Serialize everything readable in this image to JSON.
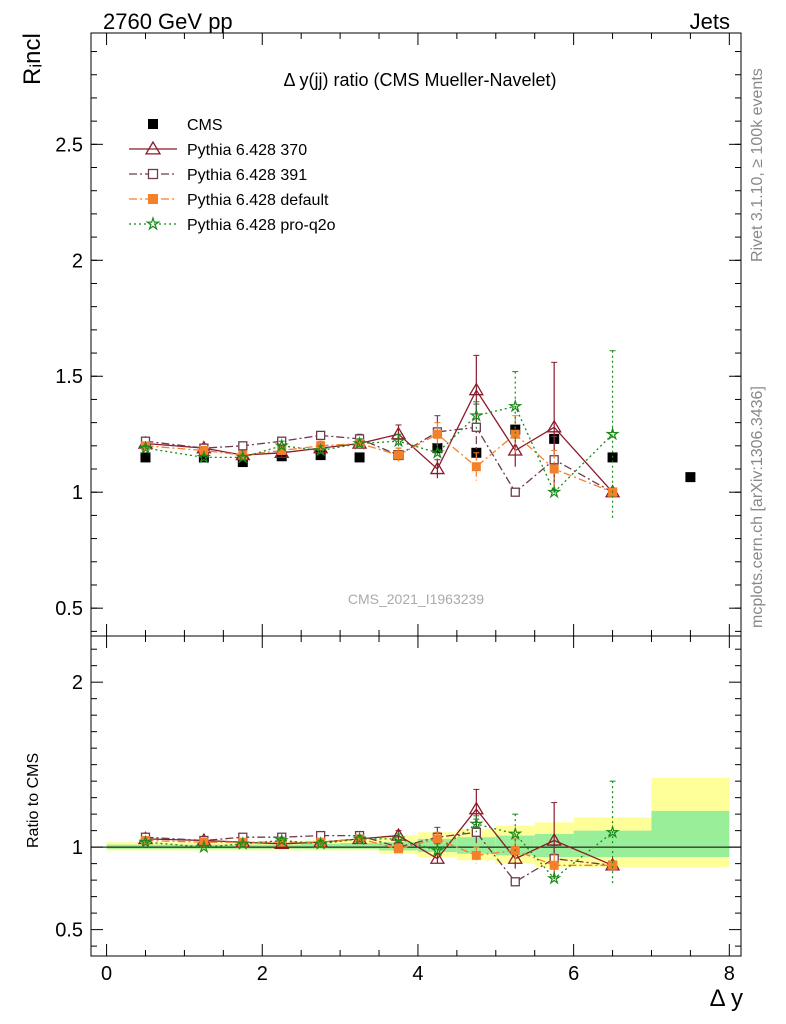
{
  "header": {
    "left": "2760 GeV pp",
    "right": "Jets"
  },
  "side_labels": {
    "rivet": "Rivet 3.1.10, ≥ 100k events",
    "mcplots": "mcplots.cern.ch [arXiv:1306.3436]"
  },
  "chart_data": [
    {
      "type": "scatter",
      "panel": "main",
      "title": "Δ y(jj) ratio (CMS Mueller-Navelet)",
      "ylabel": "Rᵢncl",
      "xlim": [
        -0.2,
        8.15
      ],
      "ylim": [
        0.38,
        2.98
      ],
      "yticks": [
        0.5,
        1,
        1.5,
        2,
        2.5
      ],
      "ytick_labels": [
        "0.5",
        "1",
        "1.5",
        "2",
        "2.5"
      ],
      "watermark": "CMS_2021_I1963239",
      "legend_position": "top-left",
      "series": [
        {
          "name": "CMS",
          "color": "#000000",
          "marker": "filled-square",
          "line": "none",
          "x": [
            0.5,
            1.25,
            1.75,
            2.25,
            2.75,
            3.25,
            3.75,
            4.25,
            4.75,
            5.25,
            5.75,
            6.5,
            7.5
          ],
          "y": [
            1.15,
            1.15,
            1.13,
            1.155,
            1.16,
            1.15,
            1.16,
            1.19,
            1.17,
            1.27,
            1.23,
            1.15,
            1.065
          ]
        },
        {
          "name": "Pythia 6.428 370",
          "color": "#8b1a2b",
          "marker": "open-triangle",
          "line": "solid",
          "x": [
            0.5,
            1.25,
            1.75,
            2.25,
            2.75,
            3.25,
            3.75,
            4.25,
            4.75,
            5.25,
            5.75,
            6.5
          ],
          "y": [
            1.21,
            1.19,
            1.16,
            1.17,
            1.19,
            1.21,
            1.25,
            1.1,
            1.44,
            1.18,
            1.28,
            1.0
          ],
          "err": [
            0.01,
            0.01,
            0.01,
            0.02,
            0.02,
            0.02,
            0.04,
            0.04,
            0.15,
            0.07,
            0.28,
            0.01
          ]
        },
        {
          "name": "Pythia 6.428 391",
          "color": "#6e3a4e",
          "marker": "open-square",
          "line": "dashdot",
          "x": [
            0.5,
            1.25,
            1.75,
            2.25,
            2.75,
            3.25,
            3.75,
            4.25,
            4.75,
            5.25,
            5.75,
            6.5
          ],
          "y": [
            1.22,
            1.19,
            1.2,
            1.22,
            1.245,
            1.23,
            1.16,
            1.26,
            1.28,
            1.0,
            1.14,
            1.0
          ],
          "err": [
            0.01,
            0.01,
            0.01,
            0.01,
            0.01,
            0.02,
            0.03,
            0.07,
            0.1,
            0.01,
            0.1,
            0.01
          ]
        },
        {
          "name": "Pythia 6.428 default",
          "color": "#f5802a",
          "marker": "filled-square",
          "line": "dashdot",
          "x": [
            0.5,
            1.25,
            1.75,
            2.25,
            2.75,
            3.25,
            3.75,
            4.25,
            4.75,
            5.25,
            5.75,
            6.5
          ],
          "y": [
            1.2,
            1.18,
            1.16,
            1.18,
            1.2,
            1.21,
            1.16,
            1.25,
            1.11,
            1.25,
            1.1,
            1.0
          ],
          "err": [
            0.01,
            0.01,
            0.01,
            0.01,
            0.02,
            0.02,
            0.03,
            0.05,
            0.06,
            0.08,
            0.08,
            0.01
          ]
        },
        {
          "name": "Pythia 6.428 pro-q2o",
          "color": "#1a8a1a",
          "marker": "star",
          "line": "dotted",
          "x": [
            0.5,
            1.25,
            1.75,
            2.25,
            2.75,
            3.25,
            3.75,
            4.25,
            4.75,
            5.25,
            5.75,
            6.5
          ],
          "y": [
            1.19,
            1.15,
            1.15,
            1.2,
            1.18,
            1.21,
            1.22,
            1.17,
            1.33,
            1.37,
            1.0,
            1.25
          ],
          "err": [
            0.01,
            0.01,
            0.01,
            0.02,
            0.02,
            0.02,
            0.03,
            0.04,
            0.06,
            0.15,
            0.01,
            0.36
          ]
        }
      ]
    },
    {
      "type": "scatter",
      "panel": "ratio",
      "xlabel": "Δ y",
      "ylabel": "Ratio to CMS",
      "xlim": [
        -0.2,
        8.15
      ],
      "ylim": [
        0.34,
        2.28
      ],
      "yticks": [
        0.5,
        1,
        2
      ],
      "ytick_labels": [
        "0.5",
        "1",
        "2"
      ],
      "xticks": [
        0,
        2,
        4,
        6,
        8
      ],
      "xtick_labels": [
        "0",
        "2",
        "4",
        "6",
        "8"
      ],
      "uncertainty_bands": {
        "edges": [
          0,
          1,
          1.5,
          2,
          2.5,
          3,
          3.5,
          4,
          4.5,
          5,
          5.5,
          6,
          7,
          8
        ],
        "yellow_low": [
          0.98,
          0.98,
          0.98,
          0.98,
          0.98,
          0.98,
          0.96,
          0.94,
          0.92,
          0.9,
          0.88,
          0.88,
          0.88
        ],
        "yellow_high": [
          1.03,
          1.03,
          1.03,
          1.03,
          1.04,
          1.05,
          1.07,
          1.09,
          1.11,
          1.13,
          1.15,
          1.18,
          1.42
        ],
        "green_low": [
          0.99,
          0.99,
          0.99,
          0.99,
          0.99,
          0.99,
          0.98,
          0.97,
          0.96,
          0.95,
          0.94,
          0.94,
          0.94
        ],
        "green_high": [
          1.015,
          1.015,
          1.015,
          1.015,
          1.02,
          1.025,
          1.03,
          1.05,
          1.06,
          1.07,
          1.08,
          1.1,
          1.22
        ],
        "yellow_color": "#ffff99",
        "green_color": "#99ee99"
      },
      "series": [
        {
          "name": "Pythia 6.428 370",
          "color": "#8b1a2b",
          "marker": "open-triangle",
          "line": "solid",
          "x": [
            0.5,
            1.25,
            1.75,
            2.25,
            2.75,
            3.25,
            3.75,
            4.25,
            4.75,
            5.25,
            5.75,
            6.5
          ],
          "y": [
            1.05,
            1.04,
            1.03,
            1.02,
            1.03,
            1.05,
            1.07,
            0.93,
            1.23,
            0.93,
            1.04,
            0.89
          ],
          "err": [
            0.01,
            0.01,
            0.01,
            0.02,
            0.02,
            0.02,
            0.03,
            0.03,
            0.12,
            0.06,
            0.23,
            0.01
          ]
        },
        {
          "name": "Pythia 6.428 391",
          "color": "#6e3a4e",
          "marker": "open-square",
          "line": "dashdot",
          "x": [
            0.5,
            1.25,
            1.75,
            2.25,
            2.75,
            3.25,
            3.75,
            4.25,
            4.75,
            5.25,
            5.75,
            6.5
          ],
          "y": [
            1.06,
            1.04,
            1.06,
            1.06,
            1.07,
            1.07,
            1.0,
            1.06,
            1.09,
            0.79,
            0.93,
            0.89
          ],
          "err": [
            0.01,
            0.01,
            0.01,
            0.01,
            0.01,
            0.02,
            0.03,
            0.06,
            0.08,
            0.01,
            0.08,
            0.01
          ]
        },
        {
          "name": "Pythia 6.428 default",
          "color": "#f5802a",
          "marker": "filled-square",
          "line": "dashdot",
          "x": [
            0.5,
            1.25,
            1.75,
            2.25,
            2.75,
            3.25,
            3.75,
            4.25,
            4.75,
            5.25,
            5.75,
            6.5
          ],
          "y": [
            1.04,
            1.03,
            1.03,
            1.03,
            1.03,
            1.05,
            0.99,
            1.05,
            0.95,
            0.98,
            0.89,
            0.89
          ],
          "err": [
            0.01,
            0.01,
            0.01,
            0.01,
            0.02,
            0.02,
            0.03,
            0.04,
            0.05,
            0.07,
            0.07,
            0.01
          ]
        },
        {
          "name": "Pythia 6.428 pro-q2o",
          "color": "#1a8a1a",
          "marker": "star",
          "line": "dotted",
          "x": [
            0.5,
            1.25,
            1.75,
            2.25,
            2.75,
            3.25,
            3.75,
            4.25,
            4.75,
            5.25,
            5.75,
            6.5
          ],
          "y": [
            1.03,
            1.0,
            1.02,
            1.04,
            1.02,
            1.05,
            1.05,
            0.98,
            1.14,
            1.08,
            0.81,
            1.09
          ],
          "err": [
            0.01,
            0.01,
            0.01,
            0.02,
            0.02,
            0.02,
            0.03,
            0.04,
            0.05,
            0.12,
            0.01,
            0.31
          ]
        }
      ]
    }
  ]
}
